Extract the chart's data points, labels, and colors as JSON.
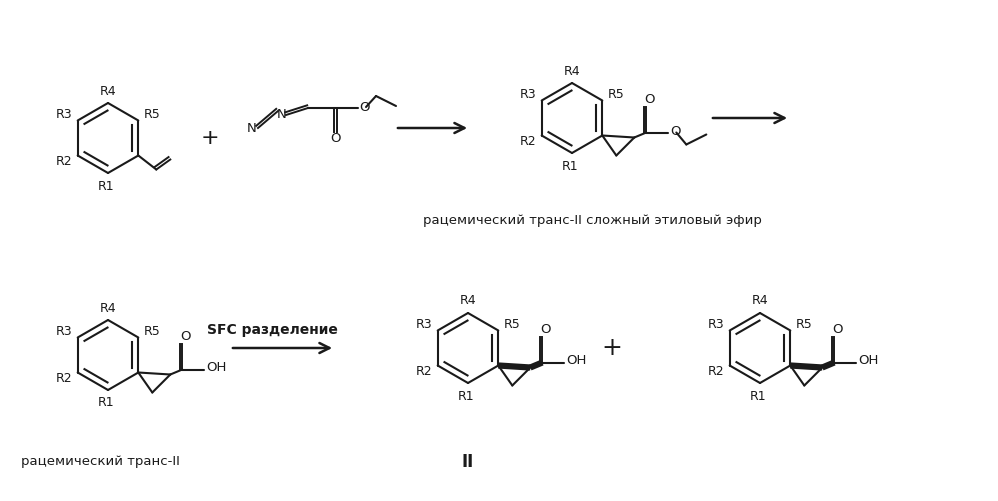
{
  "bg_color": "#ffffff",
  "line_color": "#1a1a1a",
  "text_color": "#1a1a1a",
  "figsize": [
    9.98,
    5.01
  ],
  "dpi": 100,
  "label_top1": "рацемический транс-II сложный этиловый эфир",
  "label_bottom1": "рацемический транс-II",
  "label_bottom2": "II",
  "sfc_text": "SFC разделение"
}
